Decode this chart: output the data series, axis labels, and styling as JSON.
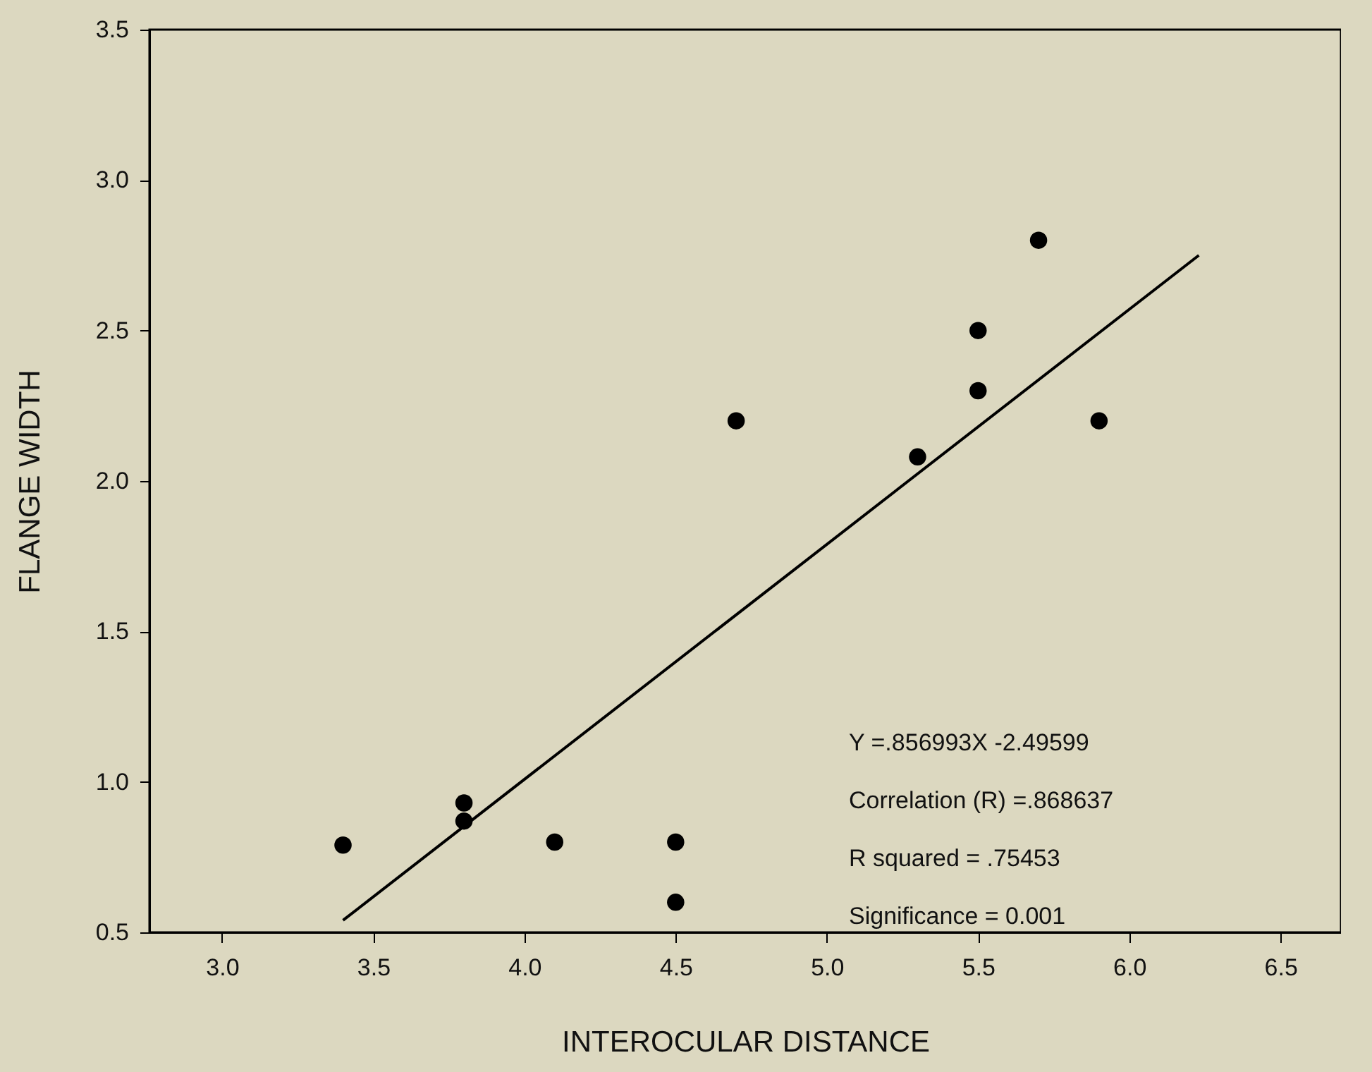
{
  "chart_data": {
    "type": "scatter",
    "xlabel": "INTEROCULAR DISTANCE",
    "ylabel": "FLANGE WIDTH",
    "xlim": [
      2.76,
      6.7
    ],
    "ylim": [
      0.5,
      3.5
    ],
    "xticks": [
      {
        "value": 3,
        "label": "3.0"
      },
      3.5,
      {
        "value": 4,
        "label": "4.0"
      },
      4.5,
      {
        "value": 5,
        "label": "5.0"
      },
      5.5,
      {
        "value": 6,
        "label": "6.0"
      },
      6.5
    ],
    "yticks": [
      0.5,
      {
        "value": 1,
        "label": "1.0"
      },
      1.5,
      {
        "value": 2,
        "label": "2.0"
      },
      2.5,
      {
        "value": 3,
        "label": "3.0"
      },
      3.5
    ],
    "grid": false,
    "series": [
      {
        "marker": "circle",
        "color": "#000000",
        "x": [
          3.4,
          3.8,
          3.8,
          4.1,
          4.5,
          4.5,
          4.7,
          5.3,
          5.5,
          5.5,
          5.7,
          5.9
        ],
        "values": [
          0.79,
          0.93,
          0.87,
          0.8,
          0.8,
          0.6,
          2.2,
          2.08,
          2.5,
          2.3,
          2.8,
          2.2
        ]
      },
      {
        "type": "line",
        "color": "#000000",
        "line_style": "solid",
        "x": [
          3.4,
          6.23
        ],
        "values": [
          0.54,
          2.75
        ]
      }
    ],
    "annotations": [
      "Y =.856993X -2.49599",
      "Correlation (R) =.868637",
      "R squared  = .75453",
      "Significance =  0.001"
    ]
  }
}
